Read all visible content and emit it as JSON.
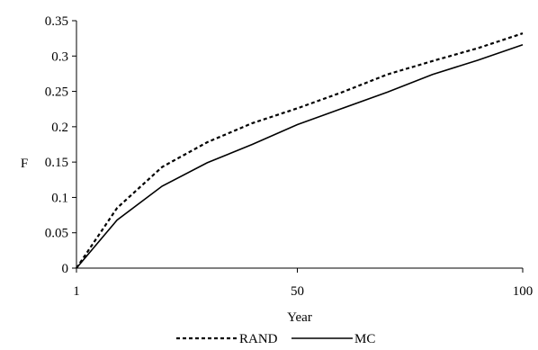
{
  "chart_data": {
    "type": "line",
    "xlabel": "Year",
    "ylabel": "F",
    "xlim": [
      1,
      100
    ],
    "ylim": [
      0,
      0.35
    ],
    "x_ticks": [
      {
        "value": 1,
        "label": "1"
      },
      {
        "value": 50,
        "label": "50"
      },
      {
        "value": 100,
        "label": "100"
      }
    ],
    "y_ticks": [
      {
        "value": 0,
        "label": "0"
      },
      {
        "value": 0.05,
        "label": "0.05"
      },
      {
        "value": 0.1,
        "label": "0.1"
      },
      {
        "value": 0.15,
        "label": "0.15"
      },
      {
        "value": 0.2,
        "label": "0.2"
      },
      {
        "value": 0.25,
        "label": "0.25"
      },
      {
        "value": 0.3,
        "label": "0.3"
      },
      {
        "value": 0.35,
        "label": "0.35"
      }
    ],
    "grid": false,
    "legend_position": "bottom",
    "x": [
      1,
      10,
      20,
      30,
      40,
      50,
      60,
      70,
      80,
      90,
      100
    ],
    "series": [
      {
        "name": "RAND",
        "style": "dashed",
        "color": "#000000",
        "values": [
          0.0,
          0.085,
          0.143,
          0.178,
          0.205,
          0.226,
          0.249,
          0.274,
          0.293,
          0.311,
          0.332
        ]
      },
      {
        "name": "MC",
        "style": "solid",
        "color": "#000000",
        "values": [
          0.0,
          0.068,
          0.116,
          0.149,
          0.175,
          0.203,
          0.226,
          0.249,
          0.274,
          0.294,
          0.316
        ]
      }
    ]
  }
}
